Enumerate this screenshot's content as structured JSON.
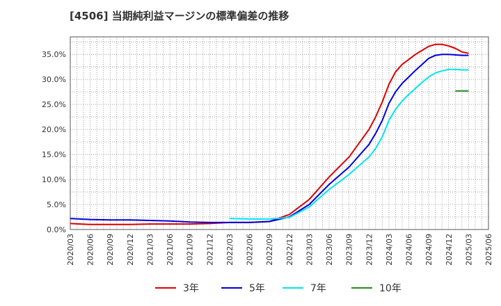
{
  "chart_data": {
    "type": "line",
    "title": "[4506]  当期純利益マージンの標準偏差の推移",
    "xlabel": "",
    "ylabel": "",
    "ylim": [
      0,
      0.385
    ],
    "grid": true,
    "legend_position": "bottom",
    "y_ticks": [
      {
        "value": 0.0,
        "label": "0.0%"
      },
      {
        "value": 0.05,
        "label": "5.0%"
      },
      {
        "value": 0.1,
        "label": "10.0%"
      },
      {
        "value": 0.15,
        "label": "15.0%"
      },
      {
        "value": 0.2,
        "label": "20.0%"
      },
      {
        "value": 0.25,
        "label": "25.0%"
      },
      {
        "value": 0.3,
        "label": "30.0%"
      },
      {
        "value": 0.35,
        "label": "35.0%"
      }
    ],
    "x_ticks": [
      "2020/03",
      "2020/06",
      "2020/09",
      "2020/12",
      "2021/03",
      "2021/06",
      "2021/09",
      "2021/12",
      "2022/03",
      "2022/06",
      "2022/09",
      "2022/12",
      "2023/03",
      "2023/06",
      "2023/09",
      "2023/12",
      "2024/03",
      "2024/06",
      "2024/09",
      "2024/12",
      "2025/03",
      "2025/06"
    ],
    "series": [
      {
        "name": "3年",
        "color": "#dd0000",
        "points": [
          [
            "2020/03",
            0.012
          ],
          [
            "2020/06",
            0.01
          ],
          [
            "2020/09",
            0.01
          ],
          [
            "2020/12",
            0.01
          ],
          [
            "2021/03",
            0.011
          ],
          [
            "2021/06",
            0.011
          ],
          [
            "2021/09",
            0.011
          ],
          [
            "2021/12",
            0.012
          ],
          [
            "2022/03",
            0.014
          ],
          [
            "2022/06",
            0.014
          ],
          [
            "2022/09",
            0.016
          ],
          [
            "2022/12",
            0.03
          ],
          [
            "2023/03",
            0.06
          ],
          [
            "2023/06",
            0.105
          ],
          [
            "2023/09",
            0.145
          ],
          [
            "2023/12",
            0.2
          ],
          [
            "2024/01",
            0.225
          ],
          [
            "2024/02",
            0.255
          ],
          [
            "2024/03",
            0.29
          ],
          [
            "2024/04",
            0.315
          ],
          [
            "2024/05",
            0.33
          ],
          [
            "2024/06",
            0.34
          ],
          [
            "2024/07",
            0.35
          ],
          [
            "2024/08",
            0.358
          ],
          [
            "2024/09",
            0.366
          ],
          [
            "2024/10",
            0.37
          ],
          [
            "2024/11",
            0.37
          ],
          [
            "2024/12",
            0.367
          ],
          [
            "2025/01",
            0.362
          ],
          [
            "2025/02",
            0.355
          ],
          [
            "2025/03",
            0.352
          ]
        ]
      },
      {
        "name": "5年",
        "color": "#0000dd",
        "points": [
          [
            "2020/03",
            0.022
          ],
          [
            "2020/06",
            0.02
          ],
          [
            "2020/09",
            0.019
          ],
          [
            "2020/12",
            0.019
          ],
          [
            "2021/03",
            0.018
          ],
          [
            "2021/06",
            0.017
          ],
          [
            "2021/09",
            0.015
          ],
          [
            "2021/12",
            0.014
          ],
          [
            "2022/03",
            0.014
          ],
          [
            "2022/06",
            0.014
          ],
          [
            "2022/09",
            0.016
          ],
          [
            "2022/12",
            0.025
          ],
          [
            "2023/03",
            0.05
          ],
          [
            "2023/06",
            0.09
          ],
          [
            "2023/09",
            0.125
          ],
          [
            "2023/12",
            0.17
          ],
          [
            "2024/01",
            0.192
          ],
          [
            "2024/02",
            0.218
          ],
          [
            "2024/03",
            0.252
          ],
          [
            "2024/04",
            0.275
          ],
          [
            "2024/05",
            0.292
          ],
          [
            "2024/06",
            0.305
          ],
          [
            "2024/07",
            0.318
          ],
          [
            "2024/08",
            0.33
          ],
          [
            "2024/09",
            0.342
          ],
          [
            "2024/10",
            0.348
          ],
          [
            "2024/11",
            0.35
          ],
          [
            "2024/12",
            0.35
          ],
          [
            "2025/01",
            0.349
          ],
          [
            "2025/02",
            0.348
          ],
          [
            "2025/03",
            0.348
          ]
        ]
      },
      {
        "name": "7年",
        "color": "#00e5ee",
        "points": [
          [
            "2022/03",
            0.022
          ],
          [
            "2022/06",
            0.021
          ],
          [
            "2022/09",
            0.021
          ],
          [
            "2022/12",
            0.024
          ],
          [
            "2023/03",
            0.045
          ],
          [
            "2023/06",
            0.08
          ],
          [
            "2023/09",
            0.11
          ],
          [
            "2023/12",
            0.145
          ],
          [
            "2024/01",
            0.162
          ],
          [
            "2024/02",
            0.185
          ],
          [
            "2024/03",
            0.218
          ],
          [
            "2024/04",
            0.24
          ],
          [
            "2024/05",
            0.257
          ],
          [
            "2024/06",
            0.27
          ],
          [
            "2024/07",
            0.282
          ],
          [
            "2024/08",
            0.294
          ],
          [
            "2024/09",
            0.305
          ],
          [
            "2024/10",
            0.313
          ],
          [
            "2024/11",
            0.317
          ],
          [
            "2024/12",
            0.32
          ],
          [
            "2025/01",
            0.32
          ],
          [
            "2025/02",
            0.319
          ],
          [
            "2025/03",
            0.319
          ]
        ]
      },
      {
        "name": "10年",
        "color": "#228b22",
        "points": [
          [
            "2025/01",
            0.277
          ],
          [
            "2025/03",
            0.277
          ]
        ]
      }
    ]
  }
}
